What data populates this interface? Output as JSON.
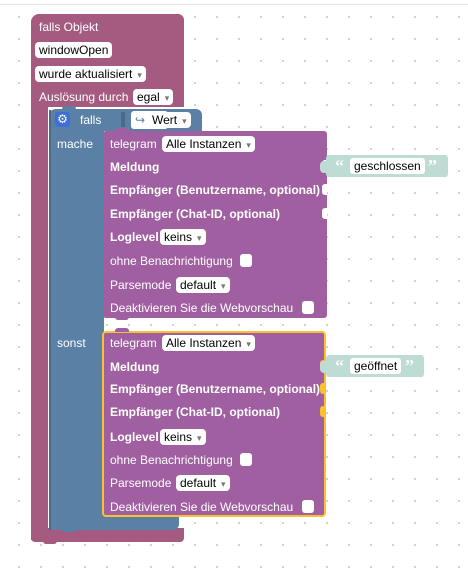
{
  "colors": {
    "event_block": "#a55b80",
    "if_block": "#5b80a5",
    "telegram_block": "#a05fa0",
    "text_block": "#bedbd4",
    "selected_outline": "#fbc02d"
  },
  "event": {
    "title": "falls Objekt",
    "object_id": "windowOpen",
    "condition": "wurde aktualisiert",
    "trigger_label": "Auslösung durch",
    "trigger_value": "egal"
  },
  "if_block": {
    "gear_icon": "gear-icon",
    "if_label": "falls",
    "value_arrow": "↪",
    "value_label": "Wert",
    "then_label": "mache",
    "else_label": "sonst"
  },
  "telegram1": {
    "title": "telegram",
    "instance": "Alle Instanzen",
    "message_label": "Meldung",
    "message_value": "geschlossen",
    "recipient_user_label": "Empfänger (Benutzername, optional)",
    "recipient_chat_label": "Empfänger (Chat-ID, optional)",
    "loglevel_label": "Loglevel",
    "loglevel_value": "keins",
    "silent_label": "ohne Benachrichtigung",
    "parsemode_label": "Parsemode",
    "parsemode_value": "default",
    "disable_preview_label": "Deaktivieren Sie die Webvorschau"
  },
  "telegram2": {
    "title": "telegram",
    "instance": "Alle Instanzen",
    "message_label": "Meldung",
    "message_value": "geöffnet",
    "recipient_user_label": "Empfänger (Benutzername, optional)",
    "recipient_chat_label": "Empfänger (Chat-ID, optional)",
    "loglevel_label": "Loglevel",
    "loglevel_value": "keins",
    "silent_label": "ohne Benachrichtigung",
    "parsemode_label": "Parsemode",
    "parsemode_value": "default",
    "disable_preview_label": "Deaktivieren Sie die Webvorschau"
  },
  "quote_open": "“",
  "quote_close": "”"
}
